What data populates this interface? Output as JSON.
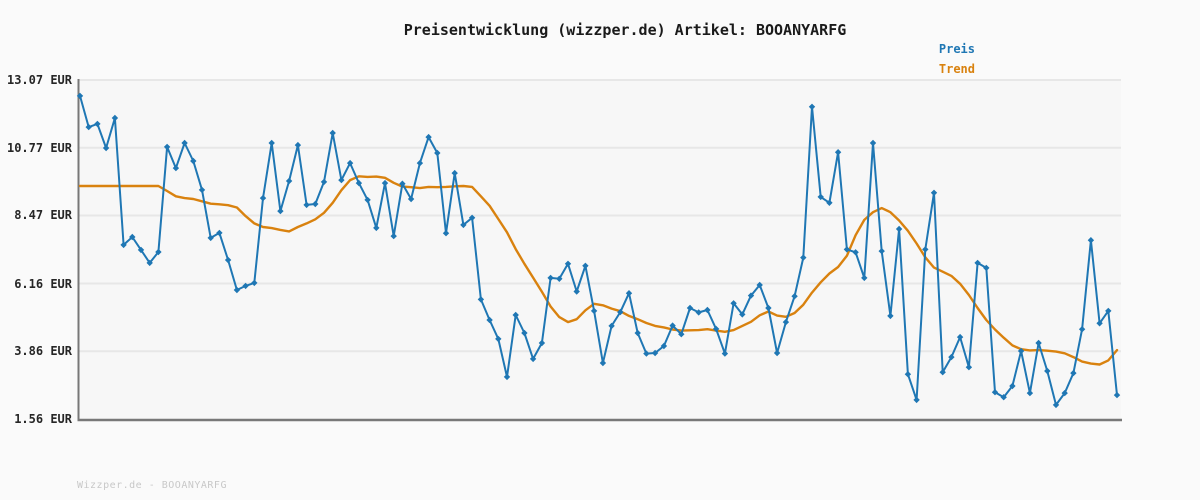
{
  "title": "Preisentwicklung (wizzper.de) Artikel: BOOANYARFG",
  "legend": {
    "price_label": "Preis",
    "trend_label": "Trend"
  },
  "footer": "Wizzper.de - BOOANYARFG",
  "colors": {
    "price": "#1f77b4",
    "trend": "#d9820f",
    "grid": "#e7e7e7",
    "spine": "#787878",
    "plot_bg": "#f7f7f7",
    "page_bg": "#fafafa",
    "title_text": "#1a1a1a",
    "tick_text": "#262626",
    "footer_text": "#c8c8c8"
  },
  "chart_data": {
    "type": "line",
    "title": "Preisentwicklung (wizzper.de) Artikel: BOOANYARFG",
    "xlabel": "",
    "ylabel": "EUR",
    "ylim": [
      1.56,
      13.07
    ],
    "grid": true,
    "legend_position": "top-right",
    "yticks": [
      {
        "value": 13.07,
        "label": "13.07 EUR"
      },
      {
        "value": 10.77,
        "label": "10.77 EUR"
      },
      {
        "value": 8.47,
        "label": "8.47 EUR"
      },
      {
        "value": 6.16,
        "label": "6.16 EUR"
      },
      {
        "value": 3.86,
        "label": "3.86 EUR"
      },
      {
        "value": 1.56,
        "label": "1.56 EUR"
      }
    ],
    "x": "time (unlabeled axis, 120 samples)",
    "series": [
      {
        "name": "Preis",
        "marker": "diamond",
        "values": [
          12.53,
          11.47,
          11.58,
          10.76,
          11.78,
          7.47,
          7.74,
          7.3,
          6.86,
          7.23,
          10.8,
          10.08,
          10.93,
          10.32,
          9.34,
          7.71,
          7.88,
          6.96,
          5.94,
          6.08,
          6.18,
          9.06,
          10.93,
          8.62,
          9.64,
          10.86,
          8.83,
          8.86,
          9.61,
          11.27,
          9.67,
          10.25,
          9.57,
          9.0,
          8.05,
          9.57,
          7.77,
          9.55,
          9.03,
          10.25,
          11.13,
          10.59,
          7.87,
          9.91,
          8.15,
          8.39,
          5.62,
          4.92,
          4.28,
          2.99,
          5.09,
          4.48,
          3.6,
          4.14,
          6.35,
          6.32,
          6.83,
          5.89,
          6.76,
          5.23,
          3.46,
          4.72,
          5.19,
          5.83,
          4.48,
          3.78,
          3.8,
          4.04,
          4.73,
          4.44,
          5.33,
          5.18,
          5.26,
          4.62,
          3.78,
          5.49,
          5.11,
          5.75,
          6.11,
          5.33,
          3.8,
          4.85,
          5.73,
          7.04,
          12.16,
          9.1,
          8.9,
          10.62,
          7.32,
          7.22,
          6.35,
          10.93,
          7.26,
          5.06,
          8.01,
          3.08,
          2.21,
          7.32,
          9.24,
          3.15,
          3.66,
          4.34,
          3.32,
          6.86,
          6.69,
          2.47,
          2.3,
          2.68,
          3.87,
          2.44,
          4.14,
          3.19,
          2.04,
          2.44,
          3.12,
          4.61,
          7.63,
          4.81,
          5.23,
          2.37
        ]
      },
      {
        "name": "Trend",
        "marker": "none",
        "values": [
          9.47,
          9.47,
          9.47,
          9.47,
          9.47,
          9.47,
          9.47,
          9.47,
          9.47,
          9.47,
          9.3,
          9.12,
          9.06,
          9.03,
          8.95,
          8.87,
          8.85,
          8.82,
          8.74,
          8.45,
          8.2,
          8.08,
          8.04,
          7.98,
          7.93,
          8.08,
          8.2,
          8.34,
          8.56,
          8.9,
          9.33,
          9.67,
          9.8,
          9.78,
          9.79,
          9.75,
          9.58,
          9.45,
          9.43,
          9.4,
          9.44,
          9.43,
          9.44,
          9.46,
          9.47,
          9.44,
          9.12,
          8.8,
          8.35,
          7.9,
          7.33,
          6.83,
          6.36,
          5.88,
          5.38,
          5.02,
          4.85,
          4.95,
          5.25,
          5.47,
          5.42,
          5.31,
          5.22,
          5.06,
          4.95,
          4.82,
          4.72,
          4.67,
          4.6,
          4.56,
          4.57,
          4.58,
          4.61,
          4.56,
          4.52,
          4.58,
          4.72,
          4.86,
          5.08,
          5.21,
          5.07,
          5.03,
          5.16,
          5.44,
          5.85,
          6.2,
          6.5,
          6.72,
          7.1,
          7.8,
          8.32,
          8.58,
          8.72,
          8.58,
          8.3,
          7.95,
          7.52,
          7.05,
          6.7,
          6.56,
          6.42,
          6.15,
          5.77,
          5.33,
          4.92,
          4.6,
          4.32,
          4.06,
          3.93,
          3.89,
          3.9,
          3.88,
          3.85,
          3.79,
          3.66,
          3.51,
          3.44,
          3.41,
          3.55,
          3.9
        ]
      }
    ]
  }
}
